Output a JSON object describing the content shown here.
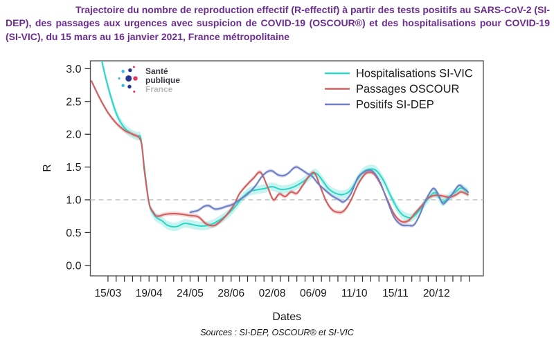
{
  "title": {
    "text": "Trajectoire du nombre de reproduction effectif (R-effectif) à partir des tests positifs au SARS-CoV-2 (SI-DEP), des passages aux urgences avec suspicion de COVID-19 (OSCOUR®) et des hospitalisations pour COVID-19 (SI-VIC), du 15 mars au 16 janvier 2021, France métropolitaine",
    "color": "#6b2d90"
  },
  "logo": {
    "line1": "Santé",
    "line2": "publique",
    "line3": "France",
    "colors": {
      "navy": "#26358f",
      "cyan": "#30b6e8",
      "pink": "#e03a5f"
    }
  },
  "footer": {
    "sources": "Sources : SI-DEP, OSCOUR® et SI-VIC"
  },
  "chart_data": {
    "type": "line",
    "title": "",
    "xlabel": "Dates",
    "ylabel": "R",
    "x_unit": "days since 15/03/2020",
    "xlim": [
      -15,
      320
    ],
    "ylim": [
      -0.16,
      3.12
    ],
    "grid": false,
    "y_ticks": [
      0.0,
      0.5,
      1.0,
      1.5,
      2.0,
      2.5,
      3.0
    ],
    "x_major_ticks": {
      "days": [
        0,
        35,
        70,
        105,
        140,
        175,
        210,
        245,
        280
      ],
      "labels": [
        "15/03",
        "19/04",
        "24/05",
        "28/06",
        "02/08",
        "06/09",
        "11/10",
        "15/11",
        "20/12"
      ]
    },
    "x_minor_ticks": {
      "from": 0,
      "to": 308,
      "step": 7
    },
    "reference_line": {
      "y": 1.0,
      "style": "dashed",
      "color": "#c4c4c4"
    },
    "axis_color": "#58585a",
    "tick_color": "#2b2b2b",
    "legend": {
      "position": "top-right",
      "frame": false,
      "entries": [
        "Hospitalisations SI-VIC",
        "Passages OSCOUR",
        "Positifs SI-DEP"
      ]
    },
    "series": [
      {
        "name": "Hospitalisations SI-VIC",
        "color": "#2fd6c8",
        "band_halfwidth": 0.065,
        "days": [
          -10,
          -4,
          2,
          8,
          14,
          20,
          25,
          28,
          31,
          35,
          39,
          42,
          46,
          51,
          58,
          65,
          70,
          75,
          80,
          85,
          90,
          95,
          100,
          105,
          110,
          114,
          120,
          126,
          133,
          140,
          147,
          154,
          161,
          168,
          174,
          178,
          183,
          188,
          194,
          200,
          206,
          212,
          218,
          224,
          229,
          235,
          241,
          247,
          252,
          259,
          266,
          273,
          279,
          285,
          291,
          297,
          301,
          307
        ],
        "values": [
          3.55,
          3.02,
          2.6,
          2.28,
          2.1,
          2.01,
          1.97,
          1.94,
          1.5,
          0.95,
          0.78,
          0.72,
          0.68,
          0.61,
          0.59,
          0.64,
          0.63,
          0.61,
          0.6,
          0.61,
          0.64,
          0.69,
          0.75,
          0.83,
          0.93,
          1.02,
          1.12,
          1.15,
          1.17,
          1.2,
          1.16,
          1.17,
          1.22,
          1.3,
          1.39,
          1.4,
          1.29,
          1.17,
          1.1,
          1.08,
          1.13,
          1.29,
          1.43,
          1.47,
          1.44,
          1.29,
          1.06,
          0.86,
          0.76,
          0.73,
          0.85,
          1.02,
          1.11,
          0.97,
          1.05,
          1.13,
          1.18,
          1.11
        ]
      },
      {
        "name": "Passages OSCOUR",
        "color": "#d15f5f",
        "band_halfwidth": 0.032,
        "days": [
          -14,
          -7,
          0,
          7,
          14,
          21,
          28,
          31,
          35,
          39,
          42,
          49,
          56,
          63,
          70,
          77,
          84,
          91,
          98,
          103,
          108,
          112,
          118,
          124,
          130,
          136,
          141,
          146,
          151,
          156,
          161,
          166,
          171,
          176,
          181,
          186,
          191,
          196,
          201,
          207,
          213,
          219,
          223,
          227,
          232,
          238,
          244,
          250,
          256,
          262,
          268,
          273,
          279,
          285,
          291,
          297,
          301,
          307
        ],
        "values": [
          2.81,
          2.55,
          2.33,
          2.17,
          2.06,
          2.0,
          1.9,
          1.45,
          0.95,
          0.8,
          0.75,
          0.78,
          0.79,
          0.78,
          0.76,
          0.74,
          0.63,
          0.61,
          0.71,
          0.81,
          0.94,
          1.09,
          1.22,
          1.33,
          1.42,
          1.2,
          1.0,
          1.09,
          1.05,
          1.12,
          1.1,
          1.22,
          1.35,
          1.41,
          1.2,
          0.98,
          0.85,
          0.81,
          0.83,
          0.99,
          1.23,
          1.39,
          1.42,
          1.39,
          1.25,
          1.01,
          0.78,
          0.67,
          0.68,
          0.8,
          0.92,
          1.03,
          1.07,
          1.06,
          1.04,
          1.08,
          1.12,
          1.08
        ]
      },
      {
        "name": "Positifs SI-DEP",
        "color": "#6e7fc4",
        "band_halfwidth": 0.027,
        "days": [
          70,
          73,
          77,
          82,
          86,
          91,
          96,
          101,
          105,
          109,
          113,
          117,
          121,
          126,
          131,
          136,
          140,
          145,
          150,
          154,
          158,
          161,
          165,
          170,
          174,
          179,
          185,
          191,
          197,
          201,
          207,
          213,
          219,
          222,
          226,
          232,
          238,
          244,
          250,
          256,
          261,
          266,
          271,
          277,
          281,
          285,
          288,
          294,
          299,
          303,
          307
        ],
        "values": [
          0.81,
          0.82,
          0.84,
          0.9,
          0.91,
          0.86,
          0.87,
          0.9,
          0.92,
          0.96,
          1.01,
          1.06,
          1.12,
          1.22,
          1.35,
          1.43,
          1.44,
          1.38,
          1.37,
          1.41,
          1.48,
          1.5,
          1.46,
          1.4,
          1.36,
          1.25,
          1.15,
          1.06,
          1.0,
          0.97,
          1.09,
          1.34,
          1.43,
          1.45,
          1.43,
          1.27,
          0.99,
          0.73,
          0.62,
          0.61,
          0.62,
          0.78,
          1.0,
          1.17,
          1.1,
          0.95,
          0.97,
          1.1,
          1.22,
          1.18,
          1.12
        ]
      }
    ]
  }
}
